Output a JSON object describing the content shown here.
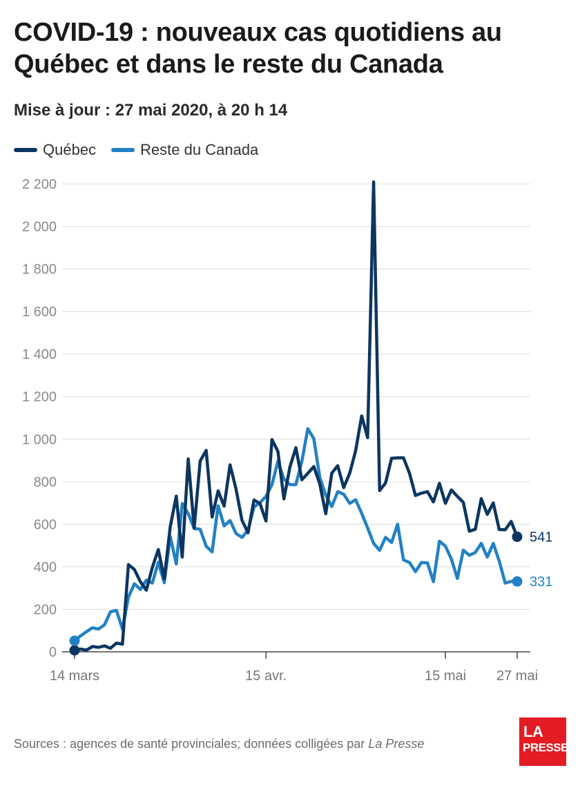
{
  "header": {
    "title": "COVID-19 : nouveaux cas quotidiens au Québec et dans le reste du Canada",
    "subtitle": "Mise à jour : 27 mai 2020, à 20 h 14"
  },
  "footer": {
    "source_prefix": "Sources : agences de santé provinciales; données colligées par ",
    "source_publication": "La Presse"
  },
  "logo": {
    "line1": "LA",
    "line2": "PRESSE",
    "color": "#e31b23"
  },
  "chart_data": {
    "type": "line",
    "title": "COVID-19 : nouveaux cas quotidiens au Québec et dans le reste du Canada",
    "ylim": [
      0,
      2200
    ],
    "y_ticks": [
      0,
      200,
      400,
      600,
      800,
      1000,
      1200,
      1400,
      1600,
      1800,
      2000,
      2200
    ],
    "y_tick_labels": [
      "0",
      "200",
      "400",
      "600",
      "800",
      "1 000",
      "1 200",
      "1 400",
      "1 600",
      "1 800",
      "2 000",
      "2 200"
    ],
    "x_start": "2020-03-14",
    "x_end": "2020-05-27",
    "x_ticks": [
      {
        "date": "2020-03-14",
        "label": "14 mars"
      },
      {
        "date": "2020-04-15",
        "label": "15 avr."
      },
      {
        "date": "2020-05-15",
        "label": "15 mai"
      },
      {
        "date": "2020-05-27",
        "label": "27 mai"
      }
    ],
    "grid": true,
    "legend_position": "top-left",
    "series": [
      {
        "name": "Québec",
        "color": "#0c3660",
        "end_label": "541",
        "x": [
          "2020-03-14",
          "2020-03-15",
          "2020-03-16",
          "2020-03-17",
          "2020-03-18",
          "2020-03-19",
          "2020-03-20",
          "2020-03-21",
          "2020-03-22",
          "2020-03-23",
          "2020-03-24",
          "2020-03-25",
          "2020-03-26",
          "2020-03-27",
          "2020-03-28",
          "2020-03-29",
          "2020-03-30",
          "2020-03-31",
          "2020-04-01",
          "2020-04-02",
          "2020-04-03",
          "2020-04-04",
          "2020-04-05",
          "2020-04-06",
          "2020-04-07",
          "2020-04-08",
          "2020-04-09",
          "2020-04-10",
          "2020-04-11",
          "2020-04-12",
          "2020-04-13",
          "2020-04-14",
          "2020-04-15",
          "2020-04-16",
          "2020-04-17",
          "2020-04-18",
          "2020-04-19",
          "2020-04-20",
          "2020-04-21",
          "2020-04-22",
          "2020-04-23",
          "2020-04-24",
          "2020-04-25",
          "2020-04-26",
          "2020-04-27",
          "2020-04-28",
          "2020-04-29",
          "2020-04-30",
          "2020-05-01",
          "2020-05-02",
          "2020-05-03",
          "2020-05-04",
          "2020-05-05",
          "2020-05-06",
          "2020-05-07",
          "2020-05-08",
          "2020-05-09",
          "2020-05-10",
          "2020-05-11",
          "2020-05-12",
          "2020-05-13",
          "2020-05-14",
          "2020-05-15",
          "2020-05-16",
          "2020-05-17",
          "2020-05-18",
          "2020-05-19",
          "2020-05-20",
          "2020-05-21",
          "2020-05-22",
          "2020-05-23",
          "2020-05-24",
          "2020-05-25",
          "2020-05-26",
          "2020-05-27"
        ],
        "values": [
          7,
          13,
          8,
          25,
          21,
          28,
          17,
          41,
          36,
          410,
          387,
          330,
          290,
          396,
          481,
          343,
          589,
          732,
          446,
          907,
          582,
          897,
          947,
          634,
          757,
          685,
          879,
          764,
          618,
          560,
          714,
          697,
          615,
          998,
          942,
          719,
          868,
          960,
          809,
          839,
          871,
          790,
          649,
          840,
          875,
          772,
          840,
          946,
          1109,
          1007,
          2209,
          758,
          794,
          910,
          912,
          912,
          839,
          735,
          746,
          753,
          705,
          792,
          698,
          761,
          731,
          703,
          567,
          576,
          720,
          646,
          700,
          575,
          574,
          613,
          541
        ]
      },
      {
        "name": "Reste du Canada",
        "color": "#2281c4",
        "end_label": "331",
        "x": [
          "2020-03-14",
          "2020-03-15",
          "2020-03-16",
          "2020-03-17",
          "2020-03-18",
          "2020-03-19",
          "2020-03-20",
          "2020-03-21",
          "2020-03-22",
          "2020-03-23",
          "2020-03-24",
          "2020-03-25",
          "2020-03-26",
          "2020-03-27",
          "2020-03-28",
          "2020-03-29",
          "2020-03-30",
          "2020-03-31",
          "2020-04-01",
          "2020-04-02",
          "2020-04-03",
          "2020-04-04",
          "2020-04-05",
          "2020-04-06",
          "2020-04-07",
          "2020-04-08",
          "2020-04-09",
          "2020-04-10",
          "2020-04-11",
          "2020-04-12",
          "2020-04-13",
          "2020-04-14",
          "2020-04-15",
          "2020-04-16",
          "2020-04-17",
          "2020-04-18",
          "2020-04-19",
          "2020-04-20",
          "2020-04-21",
          "2020-04-22",
          "2020-04-23",
          "2020-04-24",
          "2020-04-25",
          "2020-04-26",
          "2020-04-27",
          "2020-04-28",
          "2020-04-29",
          "2020-04-30",
          "2020-05-01",
          "2020-05-02",
          "2020-05-03",
          "2020-05-04",
          "2020-05-05",
          "2020-05-06",
          "2020-05-07",
          "2020-05-08",
          "2020-05-09",
          "2020-05-10",
          "2020-05-11",
          "2020-05-12",
          "2020-05-13",
          "2020-05-14",
          "2020-05-15",
          "2020-05-16",
          "2020-05-17",
          "2020-05-18",
          "2020-05-19",
          "2020-05-20",
          "2020-05-21",
          "2020-05-22",
          "2020-05-23",
          "2020-05-24",
          "2020-05-25",
          "2020-05-26",
          "2020-05-27"
        ],
        "values": [
          52,
          75,
          95,
          113,
          107,
          127,
          188,
          195,
          107,
          257,
          320,
          293,
          337,
          323,
          421,
          325,
          542,
          413,
          697,
          650,
          580,
          576,
          497,
          470,
          687,
          592,
          617,
          556,
          538,
          572,
          681,
          701,
          731,
          786,
          896,
          812,
          786,
          786,
          896,
          1049,
          1002,
          821,
          736,
          683,
          753,
          741,
          698,
          715,
          651,
          583,
          510,
          477,
          538,
          514,
          600,
          432,
          420,
          377,
          420,
          418,
          330,
          520,
          497,
          436,
          345,
          478,
          454,
          467,
          510,
          446,
          510,
          427,
          323,
          331,
          331
        ]
      }
    ]
  }
}
